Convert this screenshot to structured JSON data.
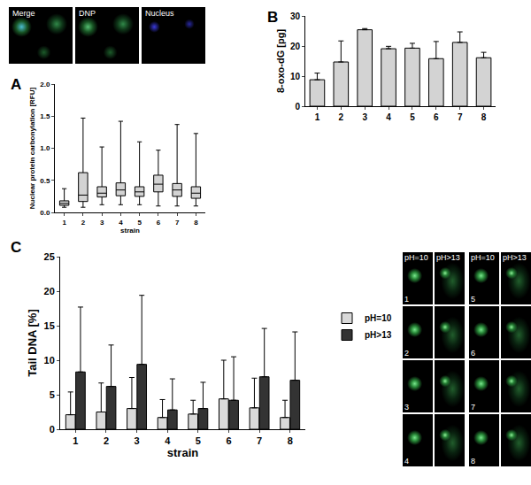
{
  "chart_data": [
    {
      "type": "box",
      "annotations": [
        "A"
      ],
      "y_label": "Nuclear protein carbonylation [RFU]",
      "x_label": "strain",
      "categories": [
        "1",
        "2",
        "3",
        "4",
        "5",
        "6",
        "7",
        "8"
      ],
      "min": [
        0.08,
        0.08,
        0.12,
        0.12,
        0.12,
        0.1,
        0.1,
        0.1
      ],
      "q1": [
        0.11,
        0.17,
        0.24,
        0.26,
        0.25,
        0.32,
        0.25,
        0.22
      ],
      "median": [
        0.14,
        0.27,
        0.3,
        0.35,
        0.32,
        0.44,
        0.35,
        0.3
      ],
      "q3": [
        0.18,
        0.62,
        0.4,
        0.46,
        0.4,
        0.58,
        0.45,
        0.4
      ],
      "max": [
        0.37,
        1.47,
        1.02,
        1.42,
        1.1,
        0.97,
        1.37,
        1.23
      ],
      "color": "#d3d3d3",
      "ylim": [
        0,
        2
      ],
      "yticks": [
        {
          "value": 0,
          "label": "0.0"
        },
        {
          "value": 0.5,
          "label": "0.5"
        },
        {
          "value": 1,
          "label": "1.0"
        },
        {
          "value": 1.5,
          "label": "1.5"
        },
        {
          "value": 2,
          "label": "2.0"
        }
      ],
      "grid": false
    },
    {
      "type": "bar",
      "annotations": [
        "B"
      ],
      "y_label": "8-oxo-dG [pg]",
      "categories": [
        "1",
        "2",
        "3",
        "4",
        "5",
        "6",
        "7",
        "8"
      ],
      "values": [
        8.8,
        14.7,
        25.4,
        19.1,
        19.3,
        15.8,
        21.2,
        16.1
      ],
      "error": [
        2.2,
        7.0,
        0.4,
        0.8,
        1.6,
        5.7,
        3.5,
        1.8
      ],
      "color": "#d3d3d3",
      "ylim": [
        0,
        30
      ],
      "yticks": [
        0,
        10,
        20,
        30
      ],
      "grid": false
    },
    {
      "type": "bar",
      "annotations": [
        "C"
      ],
      "y_label": "Tail DNA [%]",
      "x_label": "strain",
      "categories": [
        "1",
        "2",
        "3",
        "4",
        "5",
        "6",
        "7",
        "8"
      ],
      "series": [
        {
          "name": "pH=10",
          "color": "#d9d9d9",
          "values": [
            2.1,
            2.5,
            3.0,
            1.7,
            2.2,
            4.4,
            3.1,
            1.7
          ],
          "error": [
            3.3,
            4.2,
            4.5,
            2.6,
            2.0,
            5.6,
            4.3,
            2.5
          ]
        },
        {
          "name": "pH>13",
          "color": "#333333",
          "values": [
            8.3,
            6.2,
            9.4,
            2.8,
            3.0,
            4.2,
            7.6,
            7.1
          ],
          "error": [
            9.4,
            6.0,
            10.0,
            4.5,
            3.8,
            6.3,
            7.0,
            7.0
          ]
        }
      ],
      "ylim": [
        0,
        25
      ],
      "yticks": [
        0,
        5,
        10,
        15,
        20,
        25
      ],
      "grid": false,
      "legend": "right"
    }
  ],
  "images": {
    "fluorescence_panels": [
      "Merge",
      "DNP",
      "Nucleus"
    ],
    "comet_assay": {
      "columns": [
        "pH=10",
        "pH>13"
      ],
      "strains": [
        "1",
        "2",
        "3",
        "4",
        "5",
        "6",
        "7",
        "8"
      ]
    }
  }
}
